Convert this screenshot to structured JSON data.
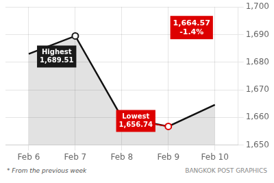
{
  "chart_data": {
    "type": "line",
    "categories": [
      "Feb 6",
      "Feb 7",
      "Feb 8",
      "Feb 9",
      "Feb 10"
    ],
    "values": [
      1683.0,
      1689.51,
      1660.0,
      1656.74,
      1664.57
    ],
    "color": "#111111",
    "ylim": [
      1650,
      1700
    ],
    "yticks": [
      1650,
      1660,
      1670,
      1680,
      1690,
      1700
    ],
    "grid": true,
    "annotations": [
      {
        "text": "Highest\n1,689.51",
        "x": "Feb 7",
        "y": 1689.51,
        "color": "#1a1a1a"
      },
      {
        "text": "Lowest\n1,656.74",
        "x": "Feb 9",
        "y": 1656.74,
        "color": "#dd0000"
      },
      {
        "text": "1,664.57\n-1.4%",
        "color": "#dd0000"
      }
    ],
    "footnote": "* From the previous week",
    "source": "BANGKOK POST GRAPHICS"
  }
}
